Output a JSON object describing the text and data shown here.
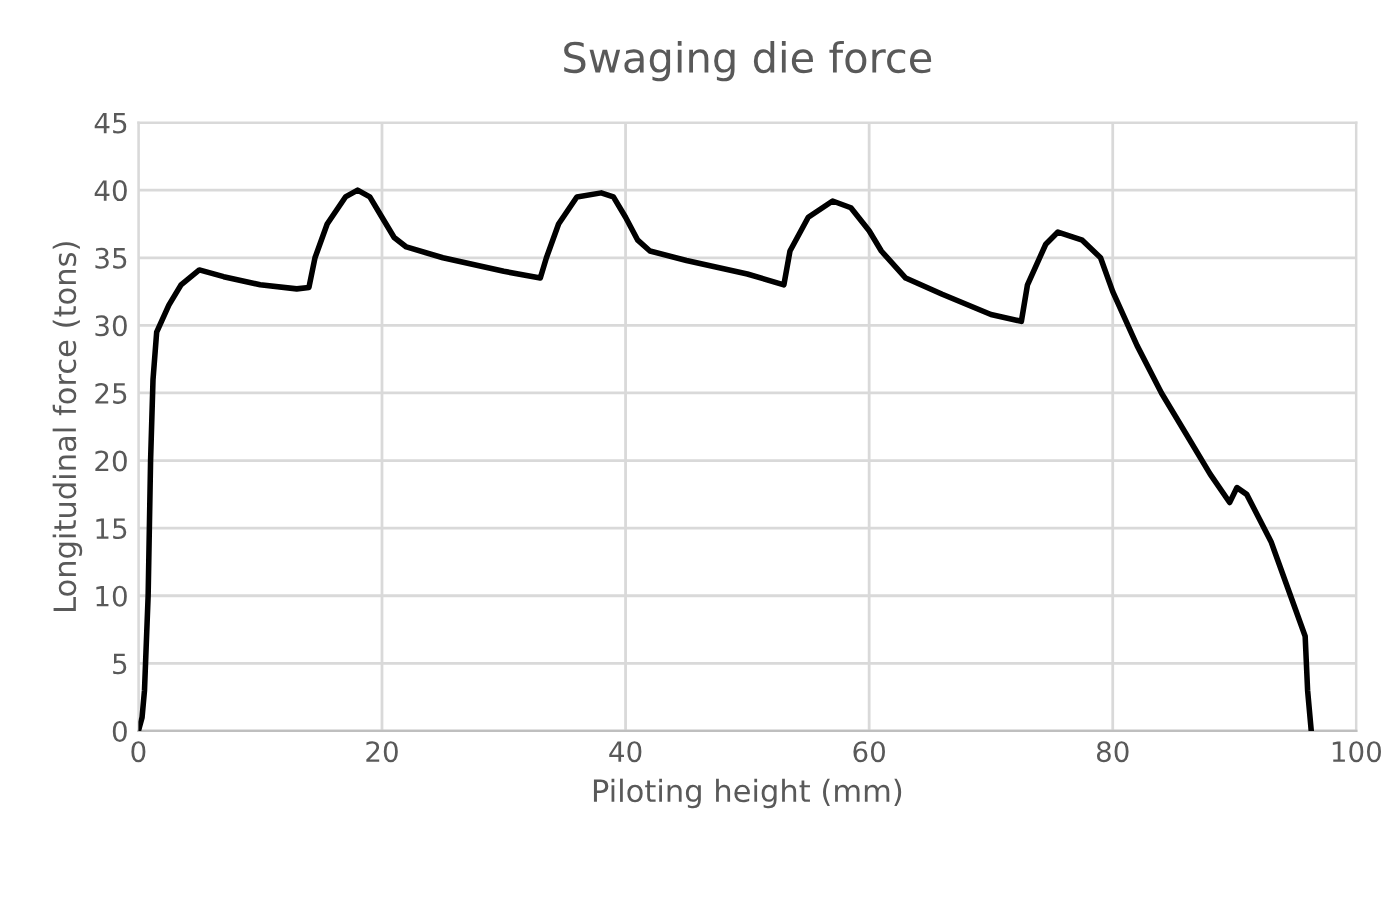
{
  "chart_data": {
    "type": "line",
    "title": "Swaging die force",
    "xlabel": "Piloting height (mm)",
    "ylabel": "Longitudinal force (tons)",
    "series": [
      {
        "color": "#000000",
        "x": [
          0,
          0.3,
          0.5,
          0.8,
          1,
          1.2,
          1.5,
          2.5,
          3.5,
          5,
          7,
          10,
          13,
          14,
          14.5,
          15.5,
          17,
          18,
          19,
          20,
          21,
          22,
          25,
          30,
          33,
          33.5,
          34.5,
          36,
          38,
          39,
          40,
          41,
          42,
          45,
          50,
          53,
          53.5,
          55,
          57,
          58.5,
          60,
          61,
          63,
          66,
          70,
          72.5,
          73,
          74.5,
          75.5,
          77.5,
          79,
          80,
          82,
          84,
          86,
          88,
          89.6,
          90.2,
          91,
          93,
          95,
          95.8,
          96,
          96.3
        ],
        "values": [
          0,
          1,
          3,
          10,
          20,
          26,
          29.5,
          31.5,
          33,
          34.1,
          33.6,
          33,
          32.7,
          32.8,
          35,
          37.5,
          39.5,
          40,
          39.5,
          38,
          36.5,
          35.8,
          35,
          34,
          33.5,
          35,
          37.5,
          39.5,
          39.8,
          39.5,
          38,
          36.3,
          35.5,
          34.8,
          33.8,
          33,
          35.5,
          38,
          39.2,
          38.7,
          37,
          35.5,
          33.5,
          32.3,
          30.8,
          30.3,
          33,
          36,
          36.9,
          36.3,
          35,
          32.5,
          28.5,
          25,
          22,
          19,
          16.9,
          18,
          17.5,
          14,
          9,
          7,
          3,
          0
        ]
      }
    ],
    "xlim": [
      0,
      100
    ],
    "xticks": [
      0,
      20,
      40,
      60,
      80,
      100
    ],
    "ylim": [
      0,
      45
    ],
    "yticks": [
      0,
      5,
      10,
      15,
      20,
      25,
      30,
      35,
      40,
      45
    ],
    "grid": true,
    "marker": "none",
    "line_style": "solid"
  }
}
